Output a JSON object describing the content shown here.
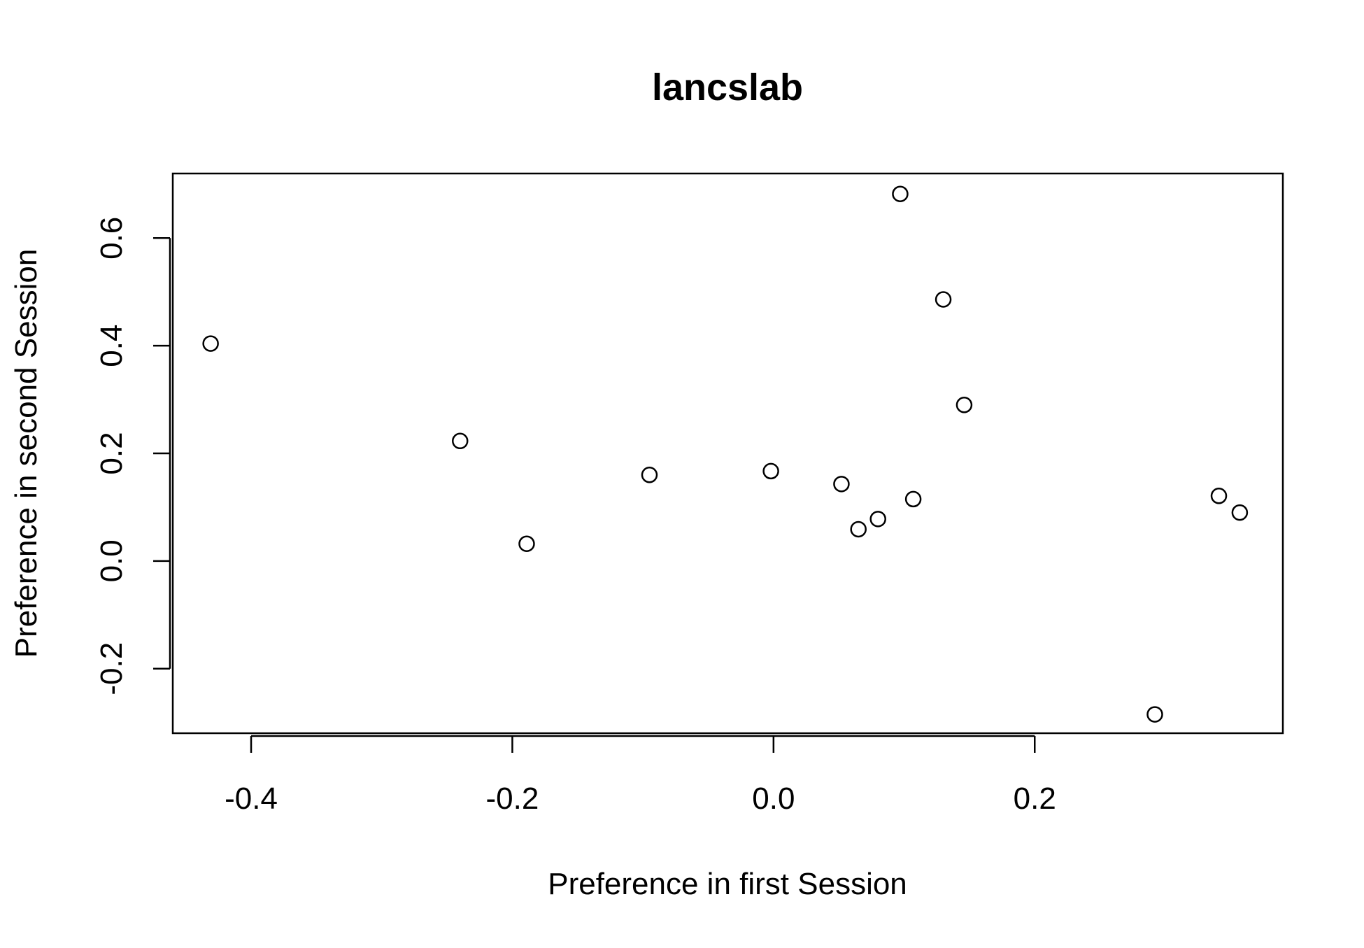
{
  "chart_data": {
    "type": "scatter",
    "title": "lancslab",
    "xlabel": "Preference in first Session",
    "ylabel": "Preference in second Session",
    "xlim": [
      -0.46,
      0.39
    ],
    "ylim": [
      -0.32,
      0.72
    ],
    "x_ticks": [
      -0.4,
      -0.2,
      0.0,
      0.2
    ],
    "x_tick_labels": [
      "-0.4",
      "-0.2",
      "0.0",
      "0.2"
    ],
    "y_ticks": [
      -0.2,
      0.0,
      0.2,
      0.4,
      0.6
    ],
    "y_tick_labels": [
      "-0.2",
      "0.0",
      "0.2",
      "0.4",
      "0.6"
    ],
    "grid": false,
    "marker": "open-circle",
    "points": [
      {
        "x": -0.431,
        "y": 0.404
      },
      {
        "x": -0.24,
        "y": 0.223
      },
      {
        "x": -0.189,
        "y": 0.032
      },
      {
        "x": -0.095,
        "y": 0.16
      },
      {
        "x": -0.002,
        "y": 0.167
      },
      {
        "x": 0.052,
        "y": 0.143
      },
      {
        "x": 0.065,
        "y": 0.059
      },
      {
        "x": 0.08,
        "y": 0.078
      },
      {
        "x": 0.097,
        "y": 0.682
      },
      {
        "x": 0.107,
        "y": 0.115
      },
      {
        "x": 0.13,
        "y": 0.486
      },
      {
        "x": 0.146,
        "y": 0.29
      },
      {
        "x": 0.292,
        "y": -0.285
      },
      {
        "x": 0.341,
        "y": 0.121
      },
      {
        "x": 0.357,
        "y": 0.09
      }
    ]
  }
}
